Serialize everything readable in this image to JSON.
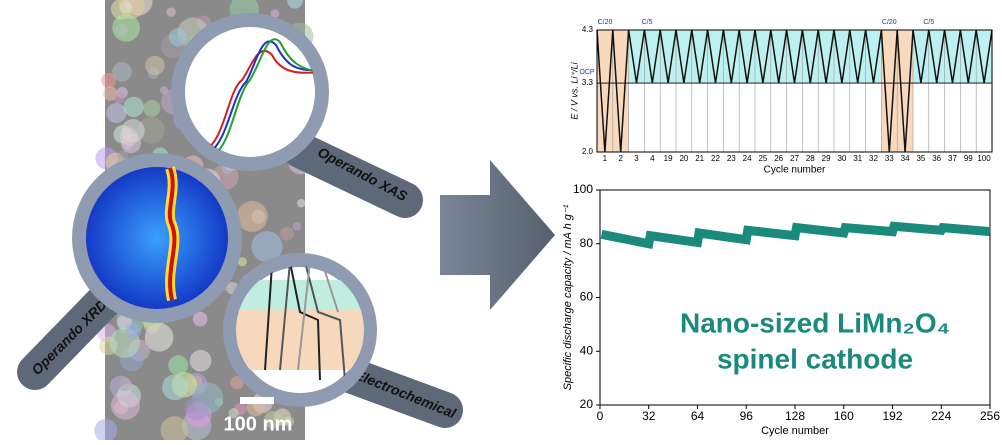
{
  "labels": {
    "xas": "Operando XAS",
    "xrd": "Operando XRD",
    "electrochemical": "Electrochemical",
    "scale_bar": "100 nm"
  },
  "chart_data": [
    {
      "type": "profile",
      "x_label": "Cycle number",
      "y_label": "E / V vs. Li⁺/Li",
      "categories": [
        "1",
        "2",
        "3",
        "4",
        "19",
        "20",
        "21",
        "22",
        "23",
        "24",
        "25",
        "26",
        "27",
        "28",
        "29",
        "30",
        "31",
        "32",
        "33",
        "34",
        "35",
        "36",
        "37",
        "99",
        "100"
      ],
      "values": [
        2.0,
        2.0,
        3.3,
        3.3,
        3.3,
        3.3,
        3.3,
        3.3,
        3.3,
        3.3,
        3.3,
        3.3,
        3.3,
        3.3,
        3.3,
        3.3,
        3.3,
        3.3,
        2.0,
        2.0,
        3.3,
        3.3,
        3.3,
        3.3,
        3.3
      ],
      "color": "#111111",
      "ylim": [
        2.0,
        4.3
      ],
      "yticks": [
        {
          "value": 2,
          "label": "2.0"
        },
        3.3,
        4.3
      ],
      "annotations": [
        "C/20",
        "C/5",
        "C/20",
        "C/5",
        "OCP"
      ]
    },
    {
      "type": "line",
      "x_label": "Cycle number",
      "y_label": "Specific discharge capacity / mA h g⁻¹",
      "annotations": [
        "Nano-sized LiMn₂O₄",
        "spinel cathode"
      ],
      "color": "#1a8a7d",
      "x": [
        1,
        32,
        33,
        64,
        65,
        96,
        97,
        128,
        129,
        160,
        161,
        192,
        193,
        224,
        225,
        256
      ],
      "values": [
        83.5,
        80,
        83,
        80.5,
        84,
        81.5,
        85,
        83,
        86,
        84,
        86,
        84.5,
        86.5,
        85,
        86,
        84.5
      ],
      "xlim": [
        0,
        256
      ],
      "xticks": [
        0,
        32,
        64,
        96,
        128,
        160,
        192,
        224,
        256
      ],
      "ylim": [
        20,
        100
      ],
      "yticks": [
        20,
        40,
        60,
        80,
        100
      ]
    }
  ]
}
